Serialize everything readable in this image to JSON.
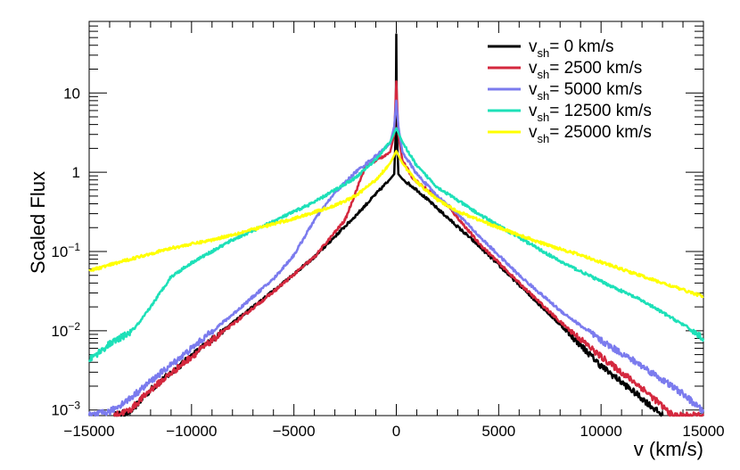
{
  "chart_data": {
    "type": "line",
    "title": "",
    "xlabel": "v (km/s)",
    "ylabel": "Scaled Flux",
    "xlim": [
      -15000,
      15000
    ],
    "ylim": [
      0.00085,
      80
    ],
    "yscale": "log",
    "x_ticks": [
      {
        "value": -15000,
        "label": "−15000"
      },
      {
        "value": -10000,
        "label": "−10000"
      },
      {
        "value": -5000,
        "label": "−5000"
      },
      {
        "value": 0,
        "label": "0"
      },
      {
        "value": 5000,
        "label": "5000"
      },
      {
        "value": 10000,
        "label": "10000"
      },
      {
        "value": 15000,
        "label": "15000"
      }
    ],
    "y_ticks": [
      {
        "value": 0.001,
        "base": "10",
        "exp": "−3"
      },
      {
        "value": 0.01,
        "base": "10",
        "exp": "−2"
      },
      {
        "value": 0.1,
        "base": "10",
        "exp": "−1"
      },
      {
        "value": 1,
        "base": "1",
        "exp": ""
      },
      {
        "value": 10,
        "base": "10",
        "exp": ""
      }
    ],
    "legend": {
      "position": "top-right",
      "prefix": "v",
      "subscript": "sh",
      "unit": "km/s"
    },
    "series": [
      {
        "name": "0",
        "color": "#000000",
        "x": [
          -13800,
          -13000,
          -12000,
          -10000,
          -8000,
          -6000,
          -4000,
          -2000,
          -1000,
          -300,
          -100,
          -30,
          0,
          30,
          100,
          300,
          1000,
          2000,
          4000,
          6000,
          8000,
          10000,
          12000,
          13000
        ],
        "y": [
          0.00085,
          0.00095,
          0.0018,
          0.0048,
          0.0125,
          0.032,
          0.085,
          0.28,
          0.53,
          0.82,
          0.95,
          3.0,
          55,
          3.0,
          0.95,
          0.82,
          0.6,
          0.35,
          0.12,
          0.038,
          0.012,
          0.0036,
          0.0014,
          0.00085
        ]
      },
      {
        "name": "2500",
        "color": "#d4283e",
        "x": [
          -13800,
          -13000,
          -12000,
          -10000,
          -8000,
          -6000,
          -4000,
          -2500,
          -1500,
          -800,
          -300,
          -100,
          0,
          100,
          300,
          800,
          1500,
          2500,
          4000,
          6000,
          8000,
          10000,
          12000,
          13500,
          15000
        ],
        "y": [
          0.00085,
          0.001,
          0.0018,
          0.0047,
          0.012,
          0.031,
          0.085,
          0.25,
          1.2,
          1.5,
          1.8,
          3.0,
          14,
          3.0,
          1.4,
          0.85,
          0.6,
          0.38,
          0.13,
          0.04,
          0.013,
          0.0047,
          0.0019,
          0.00085,
          0.00085
        ]
      },
      {
        "name": "5000",
        "color": "#7b7bee",
        "x": [
          -15000,
          -14000,
          -13000,
          -12000,
          -10000,
          -8000,
          -6000,
          -5000,
          -4000,
          -3000,
          -2000,
          -1000,
          -300,
          -100,
          0,
          100,
          300,
          1000,
          2000,
          3000,
          4000,
          6000,
          8000,
          10000,
          12000,
          14000,
          15000
        ],
        "y": [
          0.00085,
          0.00095,
          0.0014,
          0.0023,
          0.006,
          0.016,
          0.045,
          0.09,
          0.25,
          0.55,
          1.0,
          1.6,
          2.3,
          3.8,
          8.0,
          3.8,
          1.8,
          0.95,
          0.5,
          0.3,
          0.16,
          0.05,
          0.018,
          0.0075,
          0.0036,
          0.0016,
          0.00095
        ]
      },
      {
        "name": "12500",
        "color": "#1de0b8",
        "x": [
          -15000,
          -14000,
          -13000,
          -12500,
          -12000,
          -11000,
          -10000,
          -8000,
          -6000,
          -4000,
          -2000,
          -1000,
          -300,
          0,
          300,
          1000,
          2000,
          4000,
          6000,
          8000,
          10000,
          12000,
          14000,
          15000
        ],
        "y": [
          0.0043,
          0.0068,
          0.0095,
          0.013,
          0.02,
          0.048,
          0.072,
          0.14,
          0.24,
          0.42,
          0.85,
          1.45,
          2.4,
          3.6,
          2.4,
          1.2,
          0.65,
          0.3,
          0.15,
          0.075,
          0.042,
          0.024,
          0.012,
          0.008
        ]
      },
      {
        "name": "25000",
        "color": "#ffff00",
        "x": [
          -15000,
          -13000,
          -11000,
          -9000,
          -7000,
          -5000,
          -3000,
          -2000,
          -1000,
          -300,
          0,
          300,
          1000,
          2000,
          3000,
          5000,
          7000,
          9000,
          11000,
          13000,
          15000
        ],
        "y": [
          0.057,
          0.08,
          0.11,
          0.14,
          0.19,
          0.26,
          0.38,
          0.5,
          0.8,
          1.3,
          1.85,
          1.3,
          0.75,
          0.45,
          0.32,
          0.2,
          0.13,
          0.09,
          0.06,
          0.04,
          0.027
        ]
      }
    ]
  }
}
